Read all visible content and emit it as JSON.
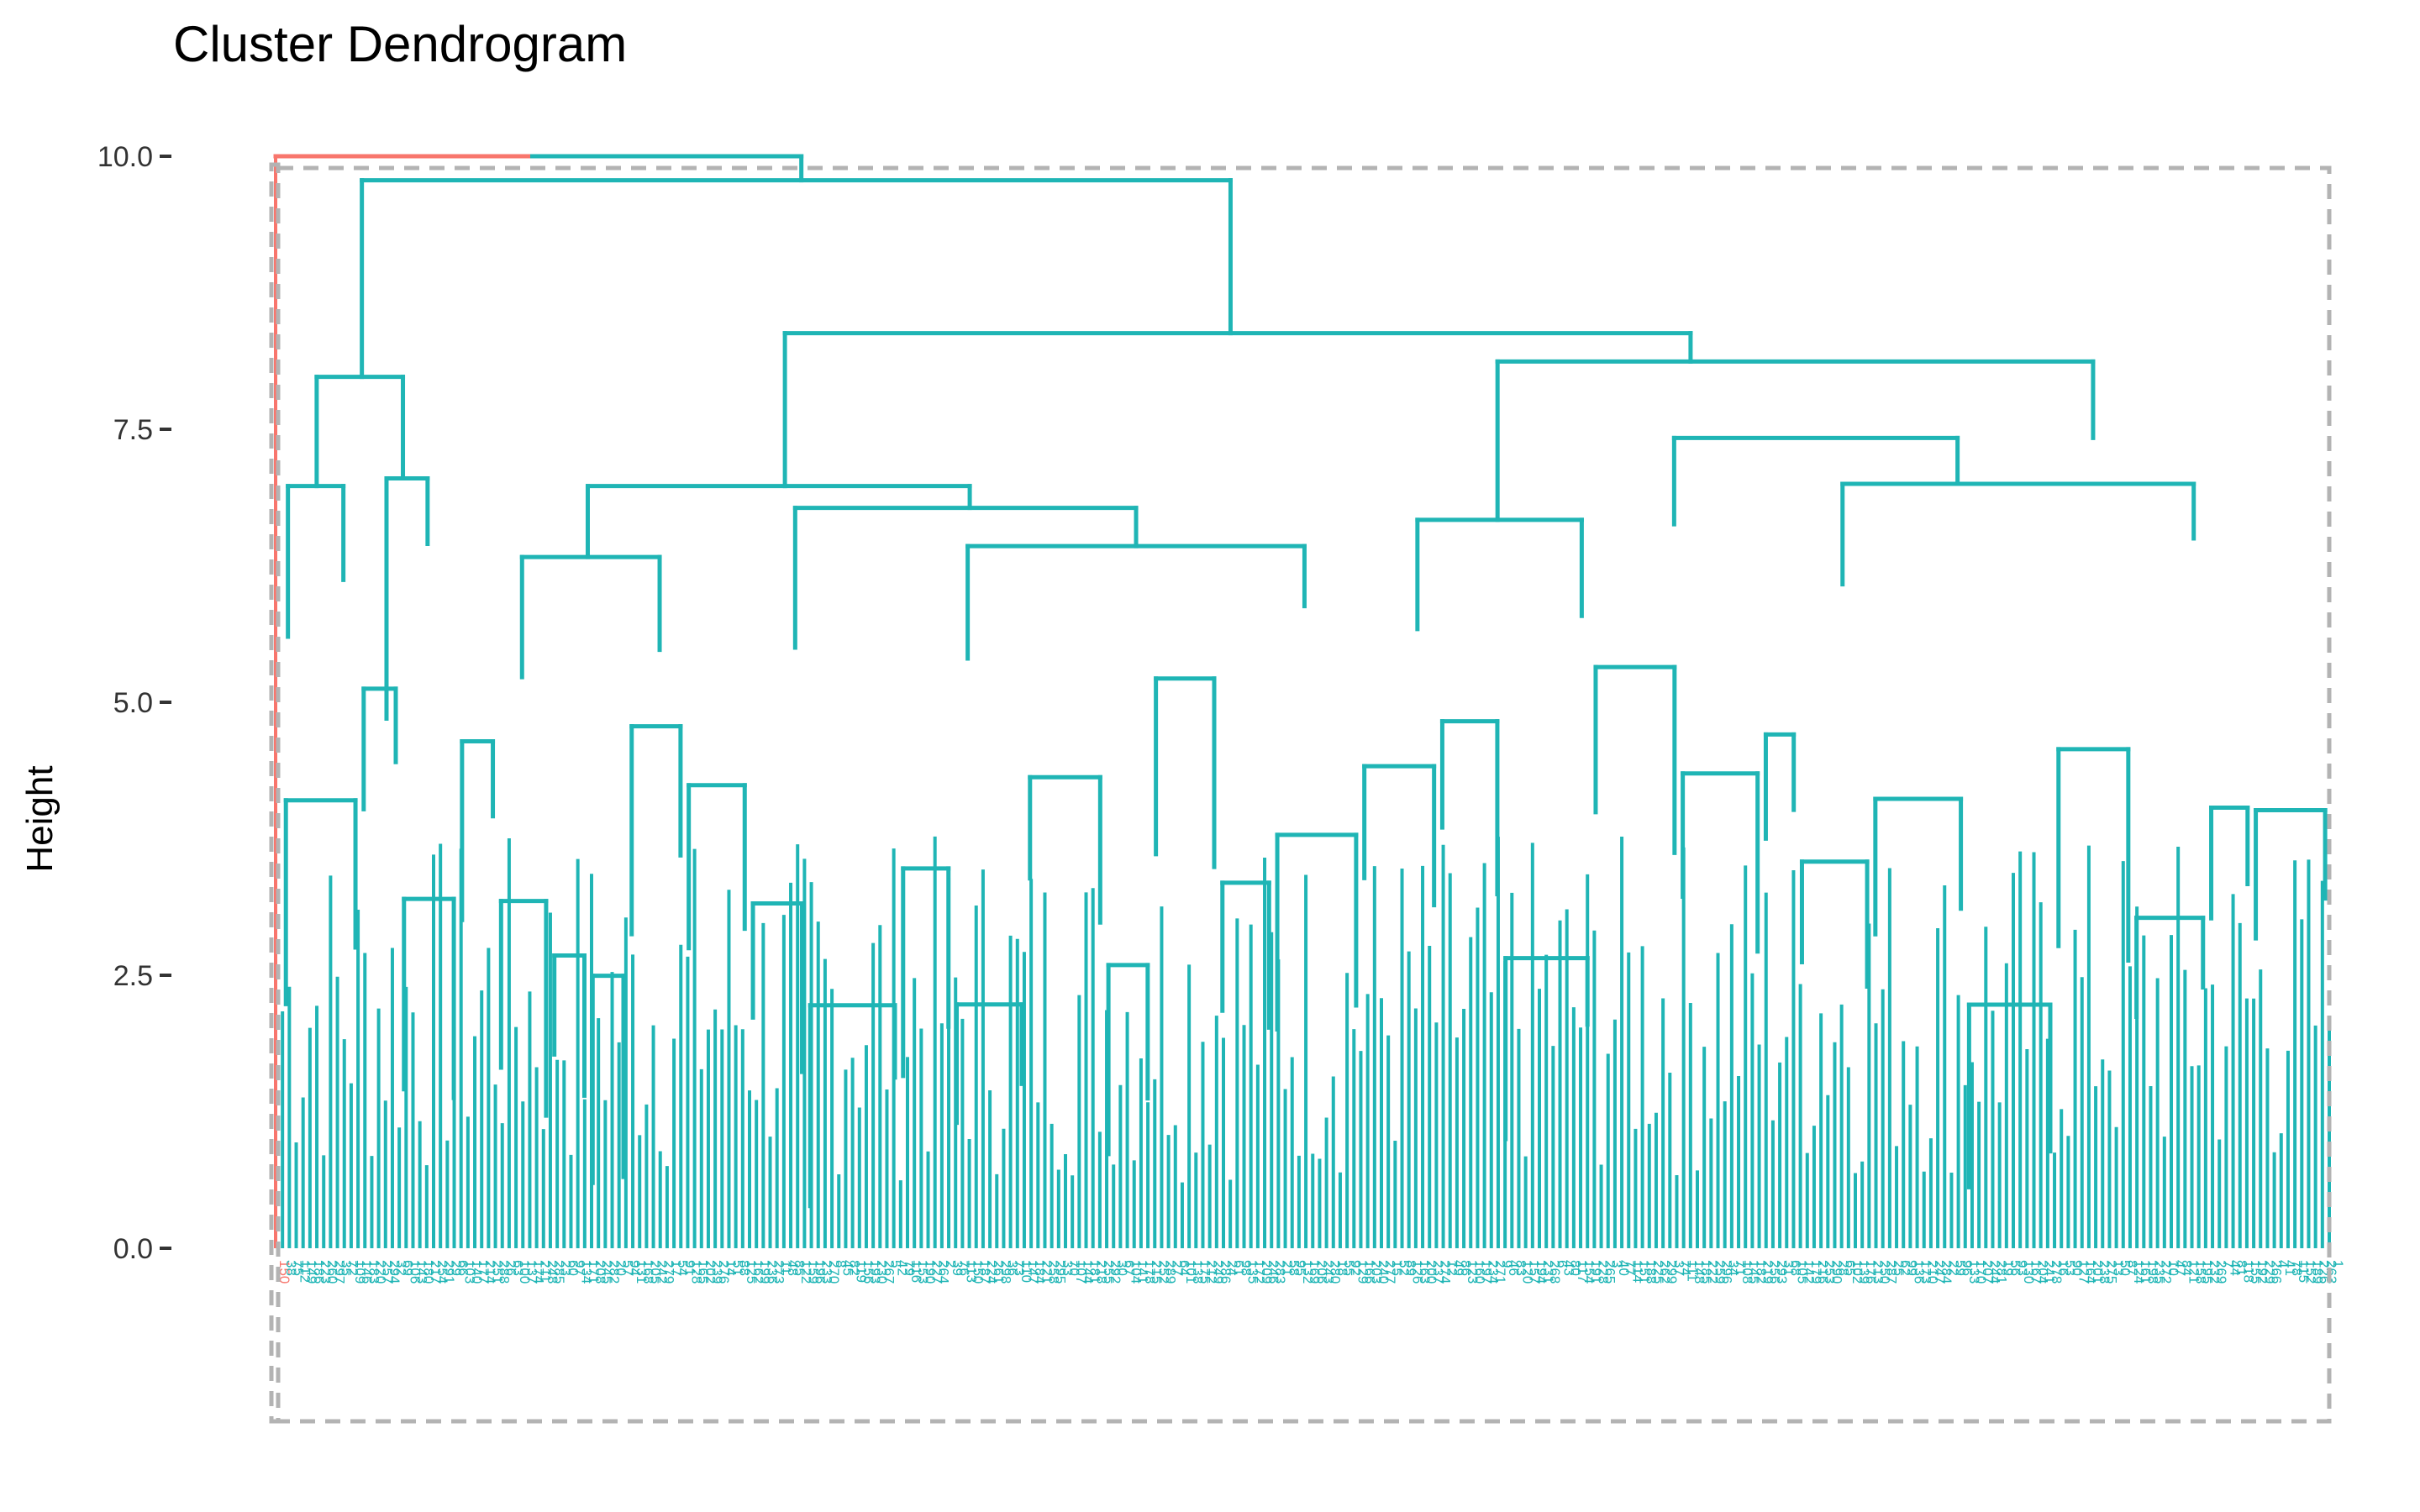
{
  "page": {
    "background": "#ffffff"
  },
  "chart_data": {
    "type": "dendrogram",
    "title": "Cluster Dendrogram",
    "xlabel": "",
    "ylabel": "Height",
    "ylim": [
      -1.7,
      10.0
    ],
    "y_ticks": [
      0.0,
      2.5,
      5.0,
      7.5,
      10.0
    ],
    "y_tick_labels": [
      "0.0",
      "2.5",
      "5.0",
      "7.5",
      "10.0"
    ],
    "grid": false,
    "leaf_count": 300,
    "clusters": [
      {
        "name": "",
        "color": "#F8766D",
        "leaf_count": 1,
        "leaves": [
          "150"
        ]
      },
      {
        "name": "",
        "color": "#1FB5B5",
        "leaf_count": 299,
        "last_leaf": "280"
      }
    ],
    "root_merge_height": 10.0,
    "merges": [
      {
        "cluster": 2,
        "x": [
          0.16,
          47.0
        ],
        "h": 9.78,
        "children": [
          2,
          6
        ]
      },
      {
        "cluster": 2,
        "x": [
          0.02,
          0.09
        ],
        "h": 7.98,
        "children": [
          5.6,
          7.05
        ]
      },
      {
        "cluster": 2,
        "x": [
          0.01,
          0.04
        ],
        "h": 6.98,
        "children": [
          5.6,
          6.12
        ]
      },
      {
        "cluster": 2,
        "x": [
          0.06,
          0.09
        ],
        "h": 7.05,
        "children": [
          6.45,
          5.33
        ]
      },
      {
        "cluster": 2,
        "x": [
          0.25,
          0.73
        ],
        "h": 8.38,
        "children": [
          6.98,
          8.12
        ]
      },
      {
        "cluster": 2,
        "x": [
          0.15,
          0.34
        ],
        "h": 6.98,
        "children": [
          6.33,
          6.78
        ]
      },
      {
        "cluster": 2,
        "x": [
          0.12,
          0.19
        ],
        "h": 6.33,
        "children": [
          5.23,
          5.48
        ]
      },
      {
        "cluster": 2,
        "x": [
          0.26,
          0.42
        ],
        "h": 6.78,
        "children": [
          5.5,
          6.43
        ]
      },
      {
        "cluster": 2,
        "x": [
          0.34,
          0.5
        ],
        "h": 6.43,
        "children": [
          5.4,
          5.88
        ]
      },
      {
        "cluster": 2,
        "x": [
          0.61,
          0.86
        ],
        "h": 8.12,
        "children": [
          6.67,
          7.42
        ]
      },
      {
        "cluster": 2,
        "x": [
          0.56,
          0.64
        ],
        "h": 6.67,
        "children": [
          5.67,
          5.79
        ]
      },
      {
        "cluster": 2,
        "x": [
          0.69,
          0.85
        ],
        "h": 7.42,
        "children": [
          6.63,
          7.0
        ]
      },
      {
        "cluster": 2,
        "x": [
          0.8,
          0.92
        ],
        "h": 7.0,
        "children": [
          6.08,
          6.5
        ]
      }
    ],
    "leaf_label_colors": [
      "#F8766D",
      "#1FB5B5"
    ],
    "rect_line_color": "#B3B3B3",
    "rect_line_style": "dashed"
  }
}
